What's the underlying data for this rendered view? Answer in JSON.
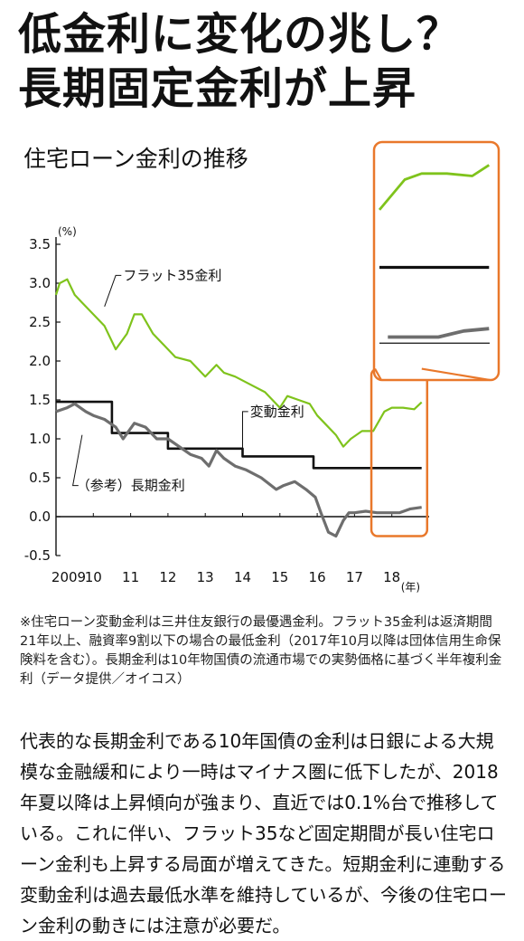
{
  "headline": {
    "line1": "低金利に変化の兆し？",
    "line2": "長期固定金利が上昇"
  },
  "subtitle": "住宅ローン金利の推移",
  "colors": {
    "flat35": "#7fc31c",
    "variable": "#111111",
    "longterm": "#6e6e6e",
    "highlight": "#e9782b"
  },
  "chart_data": {
    "type": "line",
    "y_unit": "(%)",
    "x_unit": "(年)",
    "ylim": [
      -0.5,
      3.5
    ],
    "yticks": [
      "3.5",
      "3.0",
      "2.5",
      "2.0",
      "1.5",
      "1.0",
      "0.5",
      "0.0",
      "-0.5"
    ],
    "ytick_values": [
      3.5,
      3.0,
      2.5,
      2.0,
      1.5,
      1.0,
      0.5,
      0.0,
      -0.5
    ],
    "xlim": [
      2009.0,
      2019.0
    ],
    "xticks": [
      "2009",
      "10",
      "11",
      "12",
      "13",
      "14",
      "15",
      "16",
      "17",
      "18"
    ],
    "xtick_values": [
      2009,
      2010,
      2011,
      2012,
      2013,
      2014,
      2015,
      2016,
      2017,
      2018
    ],
    "grid": false,
    "series": [
      {
        "name": "フラット35金利",
        "x": [
          2009.0,
          2009.1,
          2009.3,
          2009.5,
          2009.7,
          2010.0,
          2010.3,
          2010.6,
          2010.9,
          2011.1,
          2011.3,
          2011.6,
          2011.9,
          2012.2,
          2012.6,
          2013.0,
          2013.3,
          2013.5,
          2013.8,
          2014.2,
          2014.6,
          2015.0,
          2015.2,
          2015.5,
          2015.8,
          2016.0,
          2016.2,
          2016.5,
          2016.7,
          2016.9,
          2017.2,
          2017.5,
          2017.8,
          2018.0,
          2018.3,
          2018.6,
          2018.8
        ],
        "values": [
          2.85,
          3.0,
          3.05,
          2.85,
          2.75,
          2.6,
          2.45,
          2.15,
          2.35,
          2.6,
          2.6,
          2.35,
          2.2,
          2.05,
          2.0,
          1.8,
          1.95,
          1.85,
          1.8,
          1.7,
          1.6,
          1.4,
          1.55,
          1.5,
          1.45,
          1.3,
          1.2,
          1.05,
          0.9,
          1.0,
          1.1,
          1.1,
          1.35,
          1.4,
          1.4,
          1.38,
          1.47
        ]
      },
      {
        "name": "変動金利",
        "x": [
          2009.0,
          2010.5,
          2010.5,
          2012.0,
          2012.0,
          2014.0,
          2014.0,
          2015.9,
          2015.9,
          2018.8
        ],
        "values": [
          1.475,
          1.475,
          1.075,
          1.075,
          0.875,
          0.875,
          0.775,
          0.775,
          0.625,
          0.625
        ]
      },
      {
        "name": "（参考）長期金利",
        "x": [
          2009.0,
          2009.3,
          2009.5,
          2009.8,
          2010.0,
          2010.3,
          2010.6,
          2010.8,
          2011.1,
          2011.4,
          2011.7,
          2012.0,
          2012.3,
          2012.6,
          2012.9,
          2013.1,
          2013.3,
          2013.5,
          2013.8,
          2014.1,
          2014.5,
          2014.9,
          2015.1,
          2015.4,
          2015.7,
          2015.95,
          2016.1,
          2016.3,
          2016.5,
          2016.7,
          2016.85,
          2017.0,
          2017.3,
          2017.6,
          2017.9,
          2018.2,
          2018.5,
          2018.8
        ],
        "values": [
          1.35,
          1.4,
          1.45,
          1.35,
          1.3,
          1.25,
          1.15,
          1.0,
          1.2,
          1.15,
          1.0,
          1.0,
          0.9,
          0.8,
          0.75,
          0.65,
          0.85,
          0.75,
          0.65,
          0.6,
          0.5,
          0.35,
          0.4,
          0.45,
          0.35,
          0.25,
          0.05,
          -0.2,
          -0.25,
          -0.05,
          0.05,
          0.05,
          0.07,
          0.05,
          0.05,
          0.05,
          0.1,
          0.12
        ]
      }
    ],
    "labels": {
      "flat35": "フラット35金利",
      "variable": "変動金利",
      "longterm": "（参考）長期金利"
    }
  },
  "footnote": "※住宅ローン変動金利は三井住友銀行の最優遇金利。フラット35金利は返済期間21年以上、融資率9割以下の場合の最低金利（2017年10月以降は団体信用生命保険料を含む）。長期金利は10年物国債の流通市場での実勢価格に基づく半年複利金利（データ提供／オイコス）",
  "body": "代表的な長期金利である10年国債の金利は日銀による大規模な金融緩和により一時はマイナス圏に低下したが、2018年夏以降は上昇傾向が強まり、直近では0.1%台で推移している。これに伴い、フラット35など固定期間が長い住宅ローン金利も上昇する局面が増えてきた。短期金利に連動する変動金利は過去最低水準を維持しているが、今後の住宅ローン金利の動きには注意が必要だ。"
}
